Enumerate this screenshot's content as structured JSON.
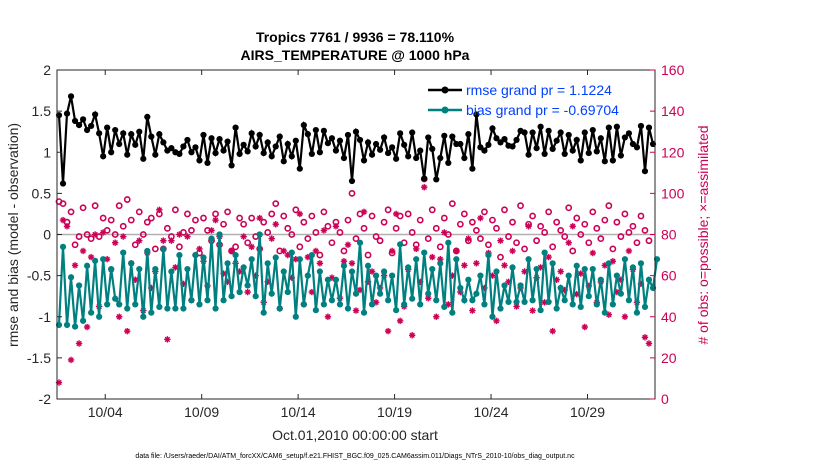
{
  "chart_data": {
    "type": "line",
    "title_line1": "Tropics 7761 / 9936 = 78.110%",
    "title_line2": "AIRS_TEMPERATURE @ 1000 hPa",
    "xlabel": "Oct.01,2010 00:00:00 start",
    "ylabel_left": "rmse and bias (model - observation)",
    "ylabel_right": "# of obs: o=possible; ×=assimilated",
    "xlim": [
      1.5,
      32.5
    ],
    "ylim_left": [
      -2,
      2
    ],
    "ylim_right": [
      0,
      160
    ],
    "x_ticks": [
      {
        "x": 4,
        "label": "10/04"
      },
      {
        "x": 9,
        "label": "10/09"
      },
      {
        "x": 14,
        "label": "10/14"
      },
      {
        "x": 19,
        "label": "10/19"
      },
      {
        "x": 24,
        "label": "10/24"
      },
      {
        "x": 29,
        "label": "10/29"
      }
    ],
    "y_ticks_left": [
      "2",
      "1.5",
      "1",
      "0.5",
      "0",
      "-0.5",
      "-1",
      "-1.5",
      "-2"
    ],
    "y_ticks_right": [
      "160",
      "140",
      "120",
      "100",
      "80",
      "60",
      "40",
      "20",
      "0"
    ],
    "legend": [
      {
        "label": "rmse grand pr = 1.1224",
        "color": "#000000"
      },
      {
        "label": "bias grand pr = -0.69704",
        "color": "#008080"
      }
    ],
    "colors": {
      "rmse": "#000000",
      "bias": "#008080",
      "obs": "#cc0055",
      "zero_line": "#b0b0b0"
    },
    "series": [
      {
        "name": "rmse",
        "values": [
          1.45,
          0.62,
          1.47,
          1.68,
          1.38,
          1.33,
          1.4,
          1.27,
          1.32,
          1.46,
          1.23,
          0.95,
          1.3,
          1.0,
          1.27,
          1.1,
          1.23,
          0.97,
          1.22,
          1.09,
          1.25,
          0.92,
          1.43,
          1.19,
          0.97,
          1.22,
          1.12,
          1.02,
          1.05,
          1.0,
          0.98,
          1.07,
          1.15,
          1.0,
          1.06,
          0.9,
          1.21,
          0.87,
          1.17,
          0.99,
          1.16,
          1.02,
          1.13,
          0.84,
          1.3,
          0.98,
          1.09,
          1.01,
          1.23,
          1.07,
          1.21,
          0.99,
          1.12,
          0.95,
          1.07,
          1.19,
          0.89,
          1.1,
          0.95,
          1.14,
          0.8,
          1.33,
          1.22,
          0.98,
          1.27,
          1.0,
          1.26,
          1.11,
          1.17,
          1.02,
          1.14,
          0.93,
          1.21,
          0.65,
          1.25,
          1.15,
          0.9,
          1.12,
          0.97,
          1.1,
          1.03,
          1.18,
          0.99,
          1.06,
          0.92,
          1.23,
          1.09,
          0.95,
          1.24,
          0.93,
          1.02,
          0.68,
          1.18,
          1.04,
          0.67,
          0.93,
          1.2,
          0.87,
          1.19,
          1.1,
          1.1,
          0.93,
          1.22,
          0.8,
          1.46,
          1.06,
          1.02,
          1.09,
          1.29,
          1.17,
          1.12,
          1.16,
          1.08,
          1.07,
          1.15,
          1.26,
          1.24,
          0.97,
          1.24,
          1.05,
          1.31,
          0.98,
          1.26,
          1.04,
          1.14,
          1.24,
          0.98,
          1.21,
          1.02,
          1.15,
          0.9,
          1.24,
          0.99,
          1.27,
          1.01,
          1.17,
          0.89,
          1.3,
          0.9,
          1.31,
          0.96,
          1.18,
          1.23,
          1.1,
          1.06,
          1.32,
          0.77,
          1.3,
          1.1
        ]
      },
      {
        "name": "bias",
        "values": [
          -1.1,
          -0.15,
          -1.1,
          -0.52,
          -1.12,
          -0.62,
          -1.05,
          -0.38,
          -0.95,
          -0.32,
          -1.0,
          -0.3,
          -0.85,
          -0.42,
          -0.78,
          -0.85,
          -0.22,
          -0.9,
          -0.35,
          -0.85,
          -0.42,
          -1.0,
          -0.2,
          -0.95,
          -0.42,
          -0.88,
          -0.18,
          -0.9,
          -0.45,
          -0.9,
          -0.25,
          -0.9,
          -0.42,
          -0.8,
          -0.25,
          -0.85,
          -0.28,
          -0.8,
          -0.05,
          -0.9,
          0.0,
          -0.8,
          -0.35,
          -0.75,
          -0.25,
          -0.7,
          -0.4,
          -0.62,
          -0.3,
          -0.75,
          -0.0,
          -0.95,
          -0.35,
          -0.72,
          -0.28,
          -0.9,
          -0.45,
          -0.7,
          -0.22,
          -1.0,
          -0.3,
          -0.85,
          -0.5,
          -0.25,
          -0.92,
          -0.45,
          -0.85,
          -0.55,
          -0.8,
          -0.55,
          -0.85,
          -0.38,
          -0.9,
          -0.45,
          -0.72,
          -0.1,
          -0.95,
          -0.38,
          -0.85,
          -0.5,
          -0.72,
          -0.45,
          -0.8,
          -0.5,
          -0.92,
          -0.12,
          -0.85,
          -0.4,
          -0.78,
          -0.3,
          -0.85,
          -0.22,
          -0.72,
          -0.42,
          -0.8,
          -0.35,
          -0.88,
          -0.1,
          -0.95,
          -0.3,
          -0.65,
          -0.8,
          -0.55,
          -0.8,
          -0.72,
          -0.5,
          -0.85,
          -0.25,
          -1.0,
          -0.45,
          -0.9,
          -0.62,
          -0.82,
          -0.4,
          -0.82,
          -0.62,
          -0.82,
          -0.3,
          -0.8,
          -0.42,
          -0.92,
          -0.22,
          -0.82,
          -0.35,
          -0.9,
          -0.65,
          -0.8,
          -0.5,
          -0.85,
          -0.38,
          -0.88,
          -0.42,
          -0.75,
          -0.42,
          -0.85,
          -0.55,
          -0.95,
          -0.35,
          -0.85,
          -0.5,
          -0.72,
          -0.3,
          -0.8,
          -0.4,
          -0.95,
          -0.35,
          -0.88,
          -0.55,
          -0.65,
          -0.3
        ]
      },
      {
        "name": "obs_possible",
        "values": [
          96,
          95,
          86,
          91,
          75,
          79,
          93,
          80,
          78,
          94,
          79,
          88,
          82,
          87,
          80,
          94,
          84,
          97,
          87,
          75,
          91,
          80,
          86,
          88,
          73,
          90,
          73,
          83,
          79,
          92,
          74,
          81,
          90,
          82,
          87,
          71,
          88,
          82,
          77,
          90,
          75,
          85,
          91,
          72,
          74,
          88,
          85,
          76,
          88,
          79,
          73,
          86,
          81,
          90,
          95,
          72,
          89,
          83,
          80,
          92,
          74,
          86,
          78,
          89,
          81,
          70,
          91,
          84,
          76,
          86,
          81,
          72,
          87,
          100,
          78,
          90,
          83,
          70,
          89,
          79,
          77,
          86,
          92,
          71,
          83,
          89,
          76,
          90,
          81,
          75,
          87,
          107,
          78,
          92,
          83,
          74,
          88,
          80,
          95,
          72,
          85,
          90,
          77,
          86,
          82,
          78,
          91,
          75,
          87,
          83,
          69,
          92,
          79,
          86,
          76,
          94,
          73,
          85,
          89,
          77,
          84,
          81,
          91,
          74,
          86,
          82,
          79,
          93,
          72,
          88,
          80,
          85,
          76,
          91,
          83,
          78,
          87,
          94,
          73,
          86,
          79,
          90,
          81,
          84,
          76,
          89,
          82,
          77
        ]
      },
      {
        "name": "obs_assimilated",
        "values": [
          8,
          87,
          84,
          19,
          65,
          27,
          72,
          35,
          69,
          80,
          45,
          81,
          68,
          63,
          76,
          40,
          79,
          33,
          66,
          58,
          77,
          43,
          71,
          54,
          62,
          92,
          77,
          29,
          77,
          64,
          80,
          56,
          79,
          48,
          70,
          73,
          67,
          55,
          82,
          87,
          79,
          61,
          57,
          72,
          66,
          62,
          79,
          52,
          74,
          60,
          88,
          47,
          57,
          78,
          85,
          44,
          72,
          70,
          59,
          68,
          90,
          46,
          69,
          52,
          72,
          66,
          82,
          40,
          59,
          84,
          49,
          67,
          75,
          66,
          43,
          53,
          91,
          57,
          62,
          47,
          54,
          60,
          33,
          72,
          90,
          38,
          45,
          63,
          31,
          73,
          57,
          103,
          49,
          69,
          40,
          68,
          81,
          46,
          60,
          72,
          52,
          65,
          78,
          43,
          66,
          88,
          54,
          71,
          60,
          38,
          77,
          65,
          57,
          72,
          45,
          54,
          62,
          84,
          43,
          59,
          64,
          47,
          69,
          33,
          58,
          62,
          53,
          76,
          84,
          51,
          61,
          35,
          55,
          71,
          47,
          57,
          65,
          41,
          67,
          52,
          58,
          40,
          72,
          63,
          47,
          56,
          30,
          27
        ]
      }
    ]
  },
  "footer_text": "data file: /Users/raeder/DAI/ATM_forcXX/CAM6_setup/f.e21.FHIST_BGC.f09_025.CAM6assim.011/Diags_NTrS_2010-10/obs_diag_output.nc"
}
